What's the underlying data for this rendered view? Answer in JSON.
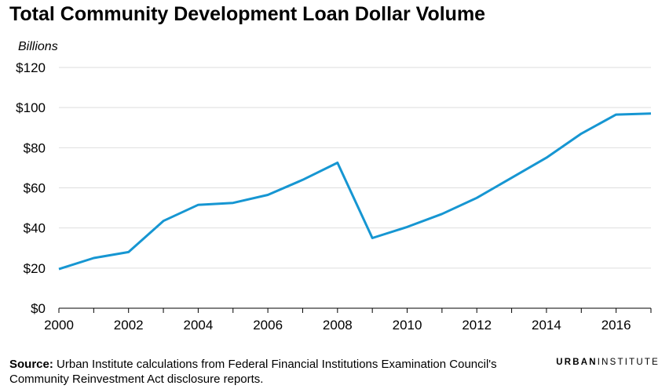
{
  "title": "Total Community Development Loan Dollar Volume",
  "chart_data": {
    "type": "line",
    "title": "Total Community Development Loan Dollar Volume",
    "ylabel": "Billions",
    "xlabel": "",
    "x": [
      2000,
      2001,
      2002,
      2003,
      2004,
      2005,
      2006,
      2007,
      2008,
      2009,
      2010,
      2011,
      2012,
      2013,
      2014,
      2015,
      2016,
      2017
    ],
    "series": [
      {
        "name": "Community development loan dollar volume",
        "values": [
          19.5,
          25,
          28,
          43.5,
          51.5,
          52.5,
          56.5,
          64,
          72.5,
          35,
          40.5,
          47,
          55,
          65,
          75,
          87,
          96.5,
          97
        ],
        "color": "#1696d2"
      }
    ],
    "xlim": [
      2000,
      2017
    ],
    "ylim": [
      0,
      120
    ],
    "y_ticks": [
      0,
      20,
      40,
      60,
      80,
      100,
      120
    ],
    "y_tick_labels": [
      "$0",
      "$20",
      "$40",
      "$60",
      "$80",
      "$100",
      "$120"
    ],
    "x_tick_labels": [
      "2000",
      "2002",
      "2004",
      "2006",
      "2008",
      "2010",
      "2012",
      "2014",
      "2016"
    ],
    "grid": true
  },
  "footer": {
    "source_label": "Source:",
    "source_text": " Urban Institute calculations from Federal Financial Institutions Examination Council's Community Reinvestment Act disclosure reports."
  },
  "brand": {
    "part1": "URBAN",
    "part2": "INSTITUTE"
  }
}
